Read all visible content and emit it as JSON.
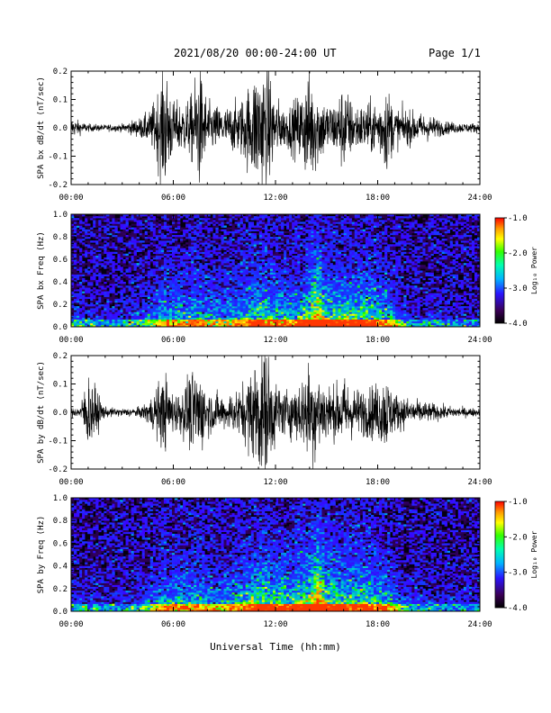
{
  "header": {
    "date_range": "2021/08/20  00:00-24:00 UT",
    "page": "Page 1/1"
  },
  "colorbar": {
    "label": "Log₁₀ Power",
    "ticks": [
      "-1.0",
      "-2.0",
      "-3.0",
      "-4.0"
    ],
    "range": [
      -4.0,
      -1.0
    ]
  },
  "chart_data": [
    {
      "type": "line",
      "ylabel": "SPA bx dB/dt (nT/sec)",
      "xlim": [
        0,
        24
      ],
      "ylim": [
        -0.2,
        0.2
      ],
      "x_ticklabels": [
        "00:00",
        "06:00",
        "12:00",
        "18:00",
        "24:00"
      ],
      "y_ticklabels": [
        "-0.2",
        "-0.1",
        "0.0",
        "0.1",
        "0.2"
      ],
      "envelope": {
        "x_hours": [
          0,
          1,
          2,
          3,
          4,
          4.6,
          5,
          5.5,
          6,
          6.5,
          7,
          7.5,
          8,
          9,
          10,
          10.5,
          11,
          11.5,
          12,
          12.5,
          13,
          13.5,
          14,
          14.5,
          15,
          15.5,
          16,
          16.5,
          17,
          17.5,
          18,
          18.5,
          19,
          19.5,
          20,
          21,
          22,
          23,
          24
        ],
        "amplitude": [
          0.03,
          0.012,
          0.01,
          0.012,
          0.03,
          0.05,
          0.1,
          0.2,
          0.08,
          0.08,
          0.09,
          0.2,
          0.08,
          0.06,
          0.09,
          0.14,
          0.2,
          0.2,
          0.1,
          0.06,
          0.08,
          0.11,
          0.18,
          0.12,
          0.08,
          0.08,
          0.14,
          0.08,
          0.07,
          0.08,
          0.08,
          0.14,
          0.06,
          0.06,
          0.05,
          0.04,
          0.02,
          0.015,
          0.015
        ]
      }
    },
    {
      "type": "heatmap",
      "ylabel": "SPA bx Freq (Hz)",
      "xlim": [
        0,
        24
      ],
      "ylim": [
        0.0,
        1.0
      ],
      "x_ticklabels": [
        "00:00",
        "06:00",
        "12:00",
        "18:00",
        "24:00"
      ],
      "y_ticklabels": [
        "0.0",
        "0.2",
        "0.4",
        "0.6",
        "0.8",
        "1.0"
      ],
      "activity": {
        "x_hours": [
          0,
          3,
          4.5,
          5.5,
          6.5,
          7.5,
          8.5,
          10,
          11,
          12,
          13,
          14,
          14.5,
          15,
          16,
          17,
          18,
          18.5,
          19,
          19.5,
          20,
          22,
          24
        ],
        "level": [
          0.2,
          0.15,
          0.3,
          0.5,
          0.45,
          0.5,
          0.4,
          0.5,
          0.6,
          0.55,
          0.5,
          0.65,
          0.85,
          0.6,
          0.6,
          0.6,
          0.55,
          0.5,
          0.4,
          0.25,
          0.2,
          0.15,
          0.15
        ]
      }
    },
    {
      "type": "line",
      "ylabel": "SPA by dB/dt (nT/sec)",
      "xlim": [
        0,
        24
      ],
      "ylim": [
        -0.2,
        0.2
      ],
      "x_ticklabels": [
        "00:00",
        "06:00",
        "12:00",
        "18:00",
        "24:00"
      ],
      "y_ticklabels": [
        "-0.2",
        "-0.1",
        "0.0",
        "0.1",
        "0.2"
      ],
      "envelope": {
        "x_hours": [
          0,
          0.5,
          1,
          2,
          3,
          4,
          4.6,
          5,
          5.5,
          6,
          6.5,
          7,
          7.5,
          8,
          9,
          10,
          10.5,
          11,
          11.5,
          12,
          12.5,
          13,
          13.5,
          14,
          14.5,
          15,
          15.5,
          16,
          16.5,
          17,
          17.5,
          18,
          18.5,
          19,
          19.5,
          20,
          21,
          22,
          23,
          24
        ],
        "amplitude": [
          0.015,
          0.015,
          0.12,
          0.015,
          0.012,
          0.015,
          0.04,
          0.08,
          0.12,
          0.06,
          0.07,
          0.12,
          0.14,
          0.07,
          0.05,
          0.08,
          0.13,
          0.2,
          0.2,
          0.1,
          0.07,
          0.08,
          0.1,
          0.16,
          0.14,
          0.09,
          0.08,
          0.11,
          0.08,
          0.07,
          0.08,
          0.09,
          0.12,
          0.06,
          0.05,
          0.04,
          0.03,
          0.02,
          0.015,
          0.012
        ]
      }
    },
    {
      "type": "heatmap",
      "ylabel": "SPA by Freq (Hz)",
      "xlim": [
        0,
        24
      ],
      "ylim": [
        0.0,
        1.0
      ],
      "x_ticklabels": [
        "00:00",
        "06:00",
        "12:00",
        "18:00",
        "24:00"
      ],
      "y_ticklabels": [
        "0.0",
        "0.2",
        "0.4",
        "0.6",
        "0.8",
        "1.0"
      ],
      "activity": {
        "x_hours": [
          0,
          3,
          4.5,
          5.5,
          6.5,
          7.5,
          8.5,
          10,
          11,
          12,
          13,
          14,
          14.5,
          15,
          16,
          17,
          18,
          18.5,
          19,
          19.5,
          20,
          22,
          24
        ],
        "level": [
          0.2,
          0.15,
          0.3,
          0.5,
          0.45,
          0.5,
          0.4,
          0.5,
          0.65,
          0.6,
          0.55,
          0.7,
          0.9,
          0.65,
          0.6,
          0.6,
          0.55,
          0.5,
          0.4,
          0.25,
          0.2,
          0.15,
          0.15
        ]
      }
    }
  ],
  "xlabel": "Universal Time (hh:mm)"
}
